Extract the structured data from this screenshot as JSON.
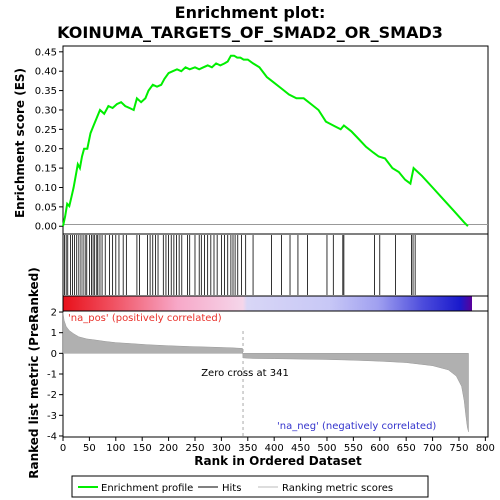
{
  "chart_data": {
    "type": "line",
    "title_line1": "Enrichment plot:",
    "title_line2": "KOINUMA_TARGETS_OF_SMAD2_OR_SMAD3",
    "top_ylabel": "Enrichment score (ES)",
    "bottom_ylabel_line1": "Ranked list metric (PreRanked)",
    "bottom_ylabel_line2": "",
    "xlabel": "Rank in Ordered Dataset",
    "xlim": [
      0,
      805
    ],
    "x_ticks": [
      "0",
      "50",
      "100",
      "150",
      "200",
      "250",
      "300",
      "350",
      "400",
      "450",
      "500",
      "550",
      "600",
      "650",
      "700",
      "750",
      "800"
    ],
    "es_ylim": [
      -0.02,
      0.465
    ],
    "es_ticks": [
      "0.00",
      "0.05",
      "0.10",
      "0.15",
      "0.20",
      "0.25",
      "0.30",
      "0.35",
      "0.40",
      "0.45"
    ],
    "metric_ylim": [
      -4.05,
      2.05
    ],
    "metric_ticks": [
      "2",
      "1",
      "0",
      "-1",
      "-2",
      "-3",
      "-4"
    ],
    "zero_cross_rank": 341,
    "zero_cross_label": "Zero cross at 341",
    "pos_label": "'na_pos' (positively correlated)",
    "neg_label": "'na_neg' (negatively correlated)",
    "pos_label_color": "#e8302a",
    "neg_label_color": "#3333cc",
    "es_line_color": "#00ee00",
    "series": [
      {
        "name": "Enrichment profile",
        "x": [
          0,
          4,
          8,
          12,
          16,
          20,
          24,
          28,
          32,
          36,
          40,
          46,
          52,
          58,
          64,
          70,
          78,
          86,
          94,
          102,
          110,
          118,
          126,
          134,
          140,
          148,
          156,
          162,
          170,
          178,
          186,
          192,
          200,
          208,
          216,
          224,
          232,
          240,
          250,
          258,
          266,
          274,
          282,
          290,
          298,
          306,
          312,
          318,
          324,
          330,
          336,
          342,
          350,
          360,
          372,
          386,
          400,
          414,
          428,
          442,
          456,
          470,
          484,
          498,
          512,
          526,
          532,
          546,
          560,
          574,
          588,
          598,
          610,
          624,
          636,
          648,
          658,
          664,
          680,
          700,
          720,
          740,
          760,
          767
        ],
        "y": [
          0.0,
          0.025,
          0.058,
          0.052,
          0.075,
          0.1,
          0.13,
          0.16,
          0.15,
          0.18,
          0.2,
          0.2,
          0.24,
          0.26,
          0.28,
          0.3,
          0.29,
          0.31,
          0.305,
          0.315,
          0.32,
          0.31,
          0.305,
          0.3,
          0.33,
          0.32,
          0.33,
          0.35,
          0.365,
          0.36,
          0.365,
          0.38,
          0.395,
          0.4,
          0.405,
          0.4,
          0.41,
          0.405,
          0.41,
          0.405,
          0.41,
          0.415,
          0.41,
          0.42,
          0.415,
          0.42,
          0.425,
          0.44,
          0.44,
          0.435,
          0.435,
          0.43,
          0.43,
          0.42,
          0.41,
          0.385,
          0.37,
          0.355,
          0.34,
          0.33,
          0.33,
          0.315,
          0.3,
          0.27,
          0.26,
          0.25,
          0.26,
          0.245,
          0.225,
          0.205,
          0.19,
          0.18,
          0.175,
          0.15,
          0.14,
          0.12,
          0.11,
          0.15,
          0.13,
          0.1,
          0.07,
          0.04,
          0.01,
          0.0
        ]
      },
      {
        "name": "Hits",
        "ranks": [
          3,
          6,
          9,
          14,
          18,
          22,
          26,
          30,
          34,
          38,
          42,
          45,
          50,
          54,
          57,
          60,
          64,
          66,
          70,
          74,
          80,
          88,
          94,
          100,
          106,
          114,
          120,
          140,
          145,
          160,
          165,
          170,
          175,
          180,
          190,
          195,
          200,
          205,
          210,
          215,
          220,
          225,
          236,
          240,
          250,
          258,
          262,
          268,
          274,
          280,
          286,
          292,
          300,
          306,
          312,
          318,
          322,
          326,
          331,
          338,
          346,
          360,
          395,
          414,
          430,
          445,
          463,
          500,
          512,
          530,
          532,
          590,
          600,
          630,
          660,
          663,
          667
        ]
      },
      {
        "name": "Ranking metric scores",
        "x": [
          0,
          2,
          6,
          12,
          20,
          30,
          45,
          60,
          80,
          100,
          130,
          160,
          200,
          240,
          280,
          320,
          340,
          341,
          360,
          400,
          450,
          500,
          550,
          600,
          650,
          700,
          730,
          745,
          755,
          760,
          763,
          766,
          768
        ],
        "y": [
          2.0,
          1.6,
          1.3,
          1.1,
          0.95,
          0.8,
          0.7,
          0.65,
          0.58,
          0.52,
          0.47,
          0.42,
          0.37,
          0.33,
          0.3,
          0.27,
          0.24,
          -0.22,
          -0.25,
          -0.26,
          -0.28,
          -0.3,
          -0.33,
          -0.38,
          -0.45,
          -0.6,
          -0.8,
          -1.1,
          -1.6,
          -2.3,
          -3.0,
          -3.6,
          -3.8
        ]
      }
    ],
    "legend": {
      "items": [
        "Enrichment profile",
        "Hits",
        "Ranking metric scores"
      ],
      "placement": "bottom"
    }
  }
}
